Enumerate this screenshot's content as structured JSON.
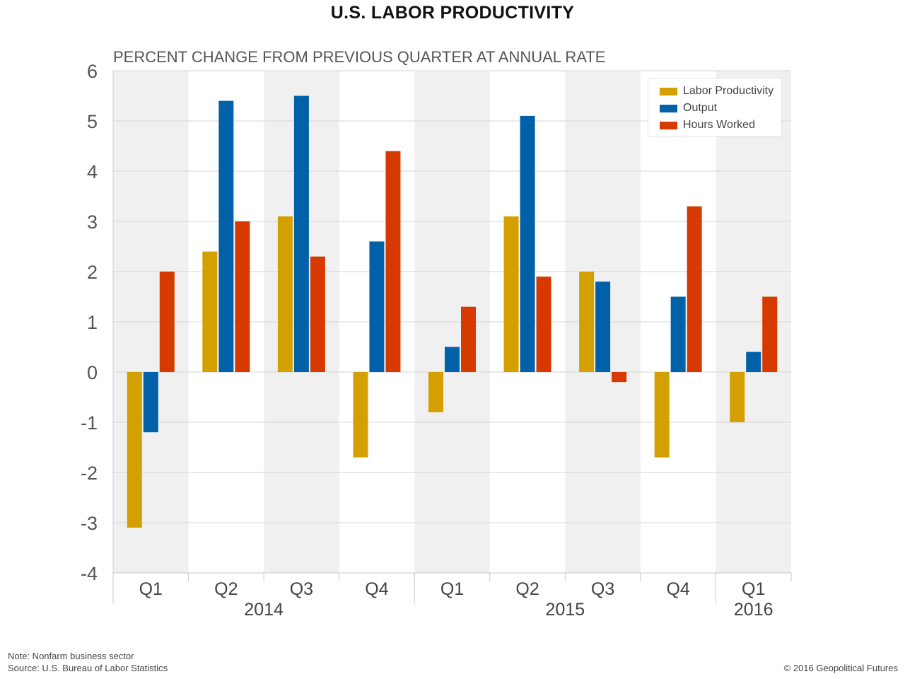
{
  "title": "U.S. LABOR PRODUCTIVITY",
  "subtitle": "PERCENT CHANGE FROM PREVIOUS QUARTER AT ANNUAL RATE",
  "footnotes": {
    "note": "Note: Nonfarm business sector",
    "source": "Source: U.S. Bureau of Labor Statistics"
  },
  "copyright": "© 2016 Geopolitical Futures",
  "colors": {
    "band": "#f0f0f0",
    "grid": "#d6d6d6",
    "labor_productivity": "#d4a000",
    "output": "#0061a8",
    "hours_worked": "#d63a00"
  },
  "chart_data": {
    "type": "bar",
    "categories": [
      "Q1",
      "Q2",
      "Q3",
      "Q4",
      "Q1",
      "Q2",
      "Q3",
      "Q4",
      "Q1"
    ],
    "groups": [
      {
        "label": "2014",
        "categories": [
          "Q1",
          "Q2",
          "Q3",
          "Q4"
        ]
      },
      {
        "label": "2015",
        "categories": [
          "Q1",
          "Q2",
          "Q3",
          "Q4"
        ]
      },
      {
        "label": "2016",
        "categories": [
          "Q1"
        ]
      }
    ],
    "series": [
      {
        "name": "Labor Productivity",
        "values": [
          -3.1,
          2.4,
          3.1,
          -1.7,
          -0.8,
          3.1,
          2.0,
          -1.7,
          -1.0
        ]
      },
      {
        "name": "Output",
        "values": [
          -1.2,
          5.4,
          5.5,
          2.6,
          0.5,
          5.1,
          1.8,
          1.5,
          0.4
        ]
      },
      {
        "name": "Hours Worked",
        "values": [
          2.0,
          3.0,
          2.3,
          4.4,
          1.3,
          1.9,
          -0.2,
          3.3,
          1.5
        ]
      }
    ],
    "ylim": [
      -4,
      6
    ],
    "yticks": [
      -4,
      -3,
      -2,
      -1,
      0,
      1,
      2,
      3,
      4,
      5,
      6
    ],
    "grid": true,
    "alternating_bands": true,
    "legend": "top-right",
    "xlabel": "",
    "ylabel": ""
  }
}
